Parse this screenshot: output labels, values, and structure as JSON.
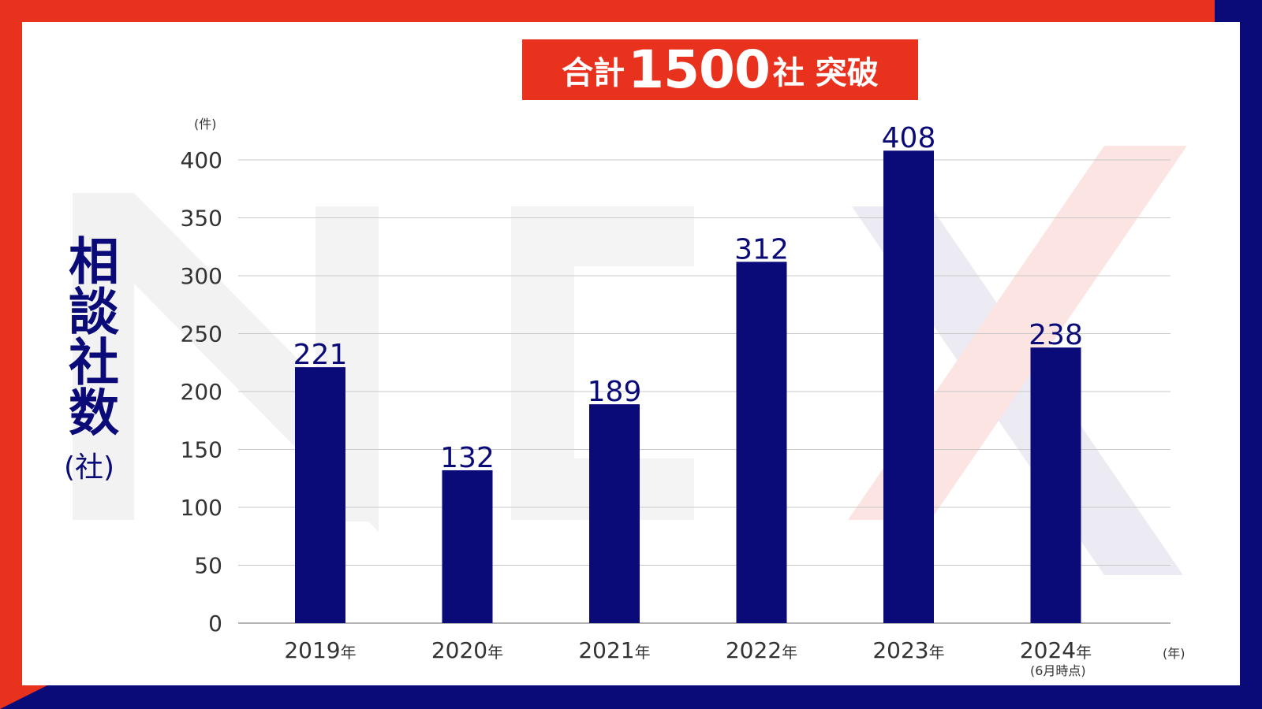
{
  "banner": {
    "pre": "合計",
    "num": "1500",
    "post": "社 突破"
  },
  "y_label": {
    "text": "相談社数",
    "unit": "(社)"
  },
  "y_unit_top": "(件)",
  "x_unit": "(年)",
  "note_2024": "(6月時点)",
  "colors": {
    "red": "#e8321e",
    "navy": "#0a0a78"
  },
  "chart_data": {
    "type": "bar",
    "categories": [
      "2019",
      "2020",
      "2021",
      "2022",
      "2023",
      "2024"
    ],
    "category_suffix": "年",
    "values": [
      221,
      132,
      189,
      312,
      408,
      238
    ],
    "ylim": [
      0,
      400
    ],
    "yticks": [
      0,
      50,
      100,
      150,
      200,
      250,
      300,
      350,
      400
    ],
    "grid": true
  }
}
